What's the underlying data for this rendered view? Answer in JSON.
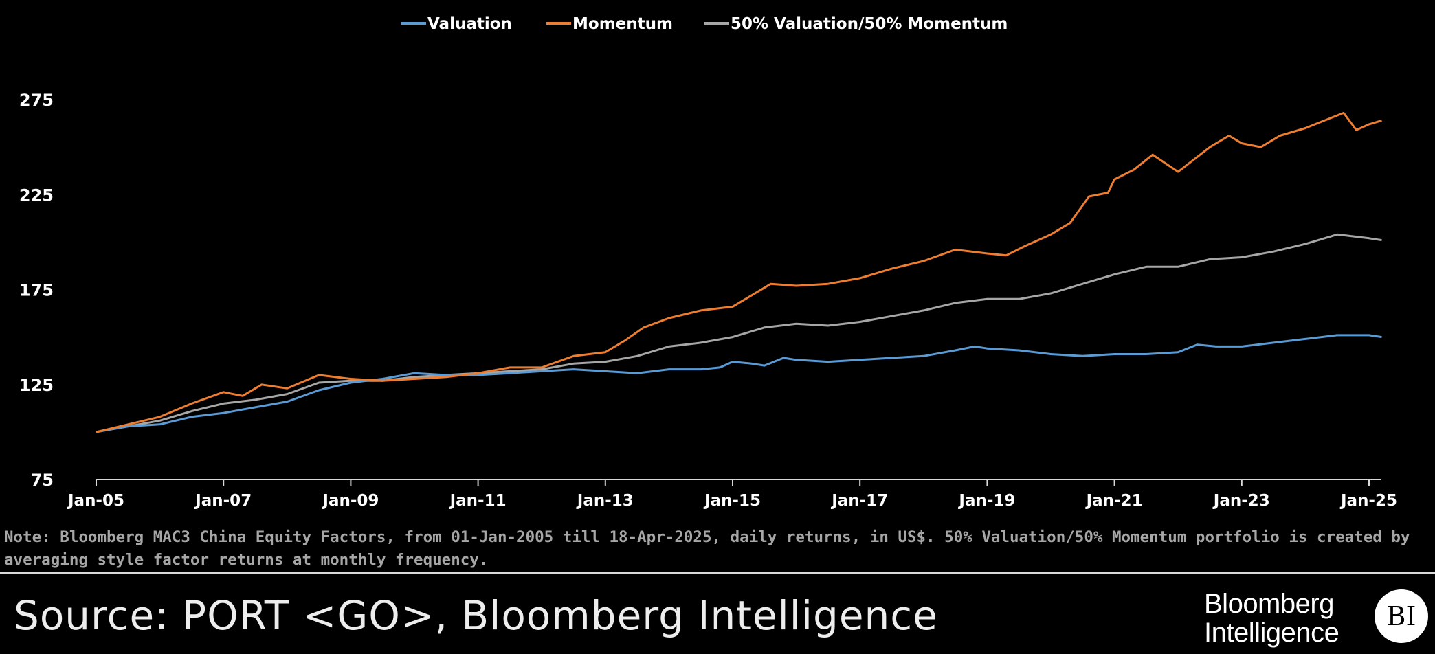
{
  "chart_data": {
    "type": "line",
    "ylim": [
      75,
      285
    ],
    "yticks": [
      75,
      125,
      175,
      225,
      275
    ],
    "xlim": [
      2005.0,
      2025.3
    ],
    "xticks": [
      {
        "label": "Jan-05",
        "x": 2005
      },
      {
        "label": "Jan-07",
        "x": 2007
      },
      {
        "label": "Jan-09",
        "x": 2009
      },
      {
        "label": "Jan-11",
        "x": 2011
      },
      {
        "label": "Jan-13",
        "x": 2013
      },
      {
        "label": "Jan-15",
        "x": 2015
      },
      {
        "label": "Jan-17",
        "x": 2017
      },
      {
        "label": "Jan-19",
        "x": 2019
      },
      {
        "label": "Jan-21",
        "x": 2021
      },
      {
        "label": "Jan-23",
        "x": 2023
      },
      {
        "label": "Jan-25",
        "x": 2025
      }
    ],
    "grid": false,
    "legend_position": "top-center",
    "series": [
      {
        "name": "Valuation",
        "color": "#5b9bd5",
        "points": [
          [
            2005.0,
            100
          ],
          [
            2005.5,
            103
          ],
          [
            2006.0,
            104
          ],
          [
            2006.5,
            108
          ],
          [
            2007.0,
            110
          ],
          [
            2007.5,
            113
          ],
          [
            2008.0,
            116
          ],
          [
            2008.5,
            122
          ],
          [
            2009.0,
            126
          ],
          [
            2009.5,
            128
          ],
          [
            2010.0,
            131
          ],
          [
            2010.5,
            130
          ],
          [
            2011.0,
            130
          ],
          [
            2011.5,
            131
          ],
          [
            2012.0,
            132
          ],
          [
            2012.5,
            133
          ],
          [
            2013.0,
            132
          ],
          [
            2013.5,
            131
          ],
          [
            2014.0,
            133
          ],
          [
            2014.5,
            133
          ],
          [
            2014.8,
            134
          ],
          [
            2015.0,
            137
          ],
          [
            2015.3,
            136
          ],
          [
            2015.5,
            135
          ],
          [
            2015.8,
            139
          ],
          [
            2016.0,
            138
          ],
          [
            2016.5,
            137
          ],
          [
            2017.0,
            138
          ],
          [
            2017.5,
            139
          ],
          [
            2018.0,
            140
          ],
          [
            2018.5,
            143
          ],
          [
            2018.8,
            145
          ],
          [
            2019.0,
            144
          ],
          [
            2019.5,
            143
          ],
          [
            2020.0,
            141
          ],
          [
            2020.5,
            140
          ],
          [
            2021.0,
            141
          ],
          [
            2021.5,
            141
          ],
          [
            2022.0,
            142
          ],
          [
            2022.3,
            146
          ],
          [
            2022.6,
            145
          ],
          [
            2023.0,
            145
          ],
          [
            2023.5,
            147
          ],
          [
            2024.0,
            149
          ],
          [
            2024.5,
            151
          ],
          [
            2025.0,
            151
          ],
          [
            2025.2,
            150
          ]
        ]
      },
      {
        "name": "Momentum",
        "color": "#ed7d31",
        "points": [
          [
            2005.0,
            100
          ],
          [
            2005.5,
            104
          ],
          [
            2006.0,
            108
          ],
          [
            2006.5,
            115
          ],
          [
            2007.0,
            121
          ],
          [
            2007.3,
            119
          ],
          [
            2007.6,
            125
          ],
          [
            2008.0,
            123
          ],
          [
            2008.5,
            130
          ],
          [
            2009.0,
            128
          ],
          [
            2009.5,
            127
          ],
          [
            2010.0,
            128
          ],
          [
            2010.5,
            129
          ],
          [
            2011.0,
            131
          ],
          [
            2011.5,
            134
          ],
          [
            2012.0,
            134
          ],
          [
            2012.5,
            140
          ],
          [
            2013.0,
            142
          ],
          [
            2013.3,
            148
          ],
          [
            2013.6,
            155
          ],
          [
            2014.0,
            160
          ],
          [
            2014.5,
            164
          ],
          [
            2015.0,
            166
          ],
          [
            2015.3,
            172
          ],
          [
            2015.6,
            178
          ],
          [
            2016.0,
            177
          ],
          [
            2016.5,
            178
          ],
          [
            2017.0,
            181
          ],
          [
            2017.5,
            186
          ],
          [
            2018.0,
            190
          ],
          [
            2018.5,
            196
          ],
          [
            2019.0,
            194
          ],
          [
            2019.3,
            193
          ],
          [
            2019.6,
            198
          ],
          [
            2020.0,
            204
          ],
          [
            2020.3,
            210
          ],
          [
            2020.6,
            224
          ],
          [
            2020.9,
            226
          ],
          [
            2021.0,
            233
          ],
          [
            2021.3,
            238
          ],
          [
            2021.6,
            246
          ],
          [
            2022.0,
            237
          ],
          [
            2022.5,
            250
          ],
          [
            2022.8,
            256
          ],
          [
            2023.0,
            252
          ],
          [
            2023.3,
            250
          ],
          [
            2023.6,
            256
          ],
          [
            2024.0,
            260
          ],
          [
            2024.3,
            264
          ],
          [
            2024.6,
            268
          ],
          [
            2024.8,
            259
          ],
          [
            2025.0,
            262
          ],
          [
            2025.2,
            264
          ]
        ]
      },
      {
        "name": "50% Valuation/50% Momentum",
        "color": "#a6a6a6",
        "points": [
          [
            2005.0,
            100
          ],
          [
            2005.5,
            103
          ],
          [
            2006.0,
            106
          ],
          [
            2006.5,
            111
          ],
          [
            2007.0,
            115
          ],
          [
            2007.5,
            117
          ],
          [
            2008.0,
            120
          ],
          [
            2008.5,
            126
          ],
          [
            2009.0,
            127
          ],
          [
            2009.5,
            127
          ],
          [
            2010.0,
            129
          ],
          [
            2010.5,
            130
          ],
          [
            2011.0,
            131
          ],
          [
            2011.5,
            132
          ],
          [
            2012.0,
            133
          ],
          [
            2012.5,
            136
          ],
          [
            2013.0,
            137
          ],
          [
            2013.5,
            140
          ],
          [
            2014.0,
            145
          ],
          [
            2014.5,
            147
          ],
          [
            2015.0,
            150
          ],
          [
            2015.5,
            155
          ],
          [
            2016.0,
            157
          ],
          [
            2016.5,
            156
          ],
          [
            2017.0,
            158
          ],
          [
            2017.5,
            161
          ],
          [
            2018.0,
            164
          ],
          [
            2018.5,
            168
          ],
          [
            2019.0,
            170
          ],
          [
            2019.5,
            170
          ],
          [
            2020.0,
            173
          ],
          [
            2020.5,
            178
          ],
          [
            2021.0,
            183
          ],
          [
            2021.5,
            187
          ],
          [
            2022.0,
            187
          ],
          [
            2022.5,
            191
          ],
          [
            2023.0,
            192
          ],
          [
            2023.5,
            195
          ],
          [
            2024.0,
            199
          ],
          [
            2024.5,
            204
          ],
          [
            2025.0,
            202
          ],
          [
            2025.2,
            201
          ]
        ]
      }
    ]
  },
  "note": "Note: Bloomberg MAC3 China Equity Factors, from 01-Jan-2005 till 18-Apr-2025, daily returns, in US$. 50% Valuation/50% Momentum portfolio is created by averaging style factor returns at monthly frequency.",
  "source": "Source: PORT <GO>, Bloomberg Intelligence",
  "brand": {
    "line1": "Bloomberg",
    "line2": "Intelligence",
    "badge": "BI"
  }
}
